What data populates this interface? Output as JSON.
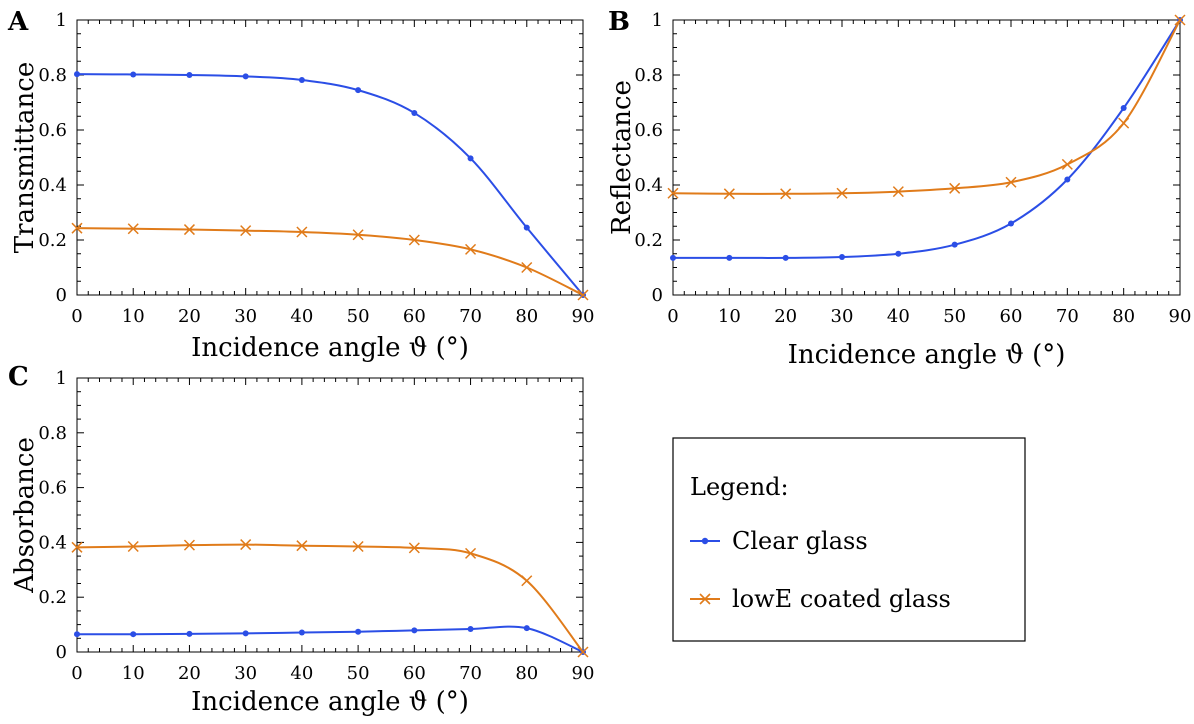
{
  "legend": {
    "title": "Legend:",
    "entries": [
      {
        "label": "Clear glass",
        "color": "#2b4ee6",
        "marker": "dot"
      },
      {
        "label": "lowE coated glass",
        "color": "#e07b1a",
        "marker": "x"
      }
    ]
  },
  "chart_data": [
    {
      "panel": "A",
      "type": "line",
      "xlabel": "Incidence angle ϑ  (°)",
      "ylabel": "Transmittance",
      "xlim": [
        0,
        90
      ],
      "ylim": [
        0,
        1
      ],
      "xticks": [
        "0",
        "10",
        "20",
        "30",
        "40",
        "50",
        "60",
        "70",
        "80",
        "90"
      ],
      "yticks": [
        "0",
        "0.2",
        "0.4",
        "0.6",
        "0.8",
        "1"
      ],
      "grid": false,
      "x": [
        0,
        10,
        20,
        30,
        40,
        50,
        60,
        70,
        80,
        90
      ],
      "series": [
        {
          "name": "Clear glass",
          "values": [
            0.803,
            0.802,
            0.8,
            0.795,
            0.782,
            0.745,
            0.662,
            0.497,
            0.245,
            0.0
          ]
        },
        {
          "name": "lowE coated glass",
          "values": [
            0.243,
            0.241,
            0.238,
            0.234,
            0.229,
            0.219,
            0.2,
            0.166,
            0.1,
            0.0
          ]
        }
      ]
    },
    {
      "panel": "B",
      "type": "line",
      "xlabel": "Incidence angle ϑ  (°)",
      "ylabel": "Reflectance",
      "xlim": [
        0,
        90
      ],
      "ylim": [
        0,
        1
      ],
      "xticks": [
        "0",
        "10",
        "20",
        "30",
        "40",
        "50",
        "60",
        "70",
        "80",
        "90"
      ],
      "yticks": [
        "0",
        "0.2",
        "0.4",
        "0.6",
        "0.8",
        "1"
      ],
      "grid": false,
      "x": [
        0,
        10,
        20,
        30,
        40,
        50,
        60,
        70,
        80,
        90
      ],
      "series": [
        {
          "name": "Clear glass",
          "values": [
            0.135,
            0.135,
            0.135,
            0.138,
            0.15,
            0.183,
            0.26,
            0.42,
            0.68,
            1.0
          ]
        },
        {
          "name": "lowE coated glass",
          "values": [
            0.37,
            0.368,
            0.368,
            0.37,
            0.376,
            0.388,
            0.41,
            0.475,
            0.625,
            1.0
          ]
        }
      ]
    },
    {
      "panel": "C",
      "type": "line",
      "xlabel": "Incidence angle ϑ  (°)",
      "ylabel": "Absorbance",
      "xlim": [
        0,
        90
      ],
      "ylim": [
        0,
        1
      ],
      "xticks": [
        "0",
        "10",
        "20",
        "30",
        "40",
        "50",
        "60",
        "70",
        "80",
        "90"
      ],
      "yticks": [
        "0",
        "0.2",
        "0.4",
        "0.6",
        "0.8",
        "1"
      ],
      "grid": false,
      "x": [
        0,
        10,
        20,
        30,
        40,
        50,
        60,
        70,
        80,
        90
      ],
      "series": [
        {
          "name": "Clear glass",
          "values": [
            0.065,
            0.065,
            0.066,
            0.068,
            0.071,
            0.074,
            0.079,
            0.084,
            0.087,
            0.0
          ]
        },
        {
          "name": "lowE coated glass",
          "values": [
            0.382,
            0.385,
            0.39,
            0.392,
            0.388,
            0.385,
            0.38,
            0.36,
            0.26,
            0.0
          ]
        }
      ]
    }
  ]
}
